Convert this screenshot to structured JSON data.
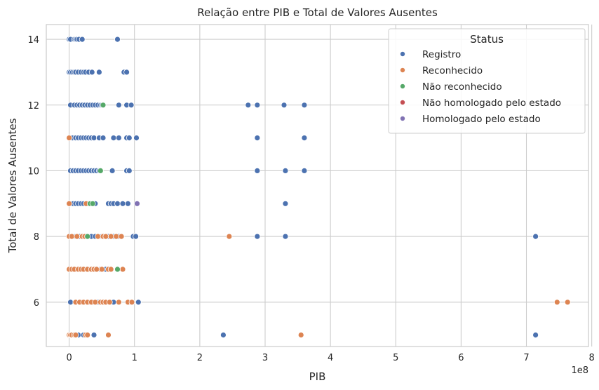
{
  "chart_data": {
    "type": "scatter",
    "title": "Relação entre PIB e Total de Valores Ausentes",
    "xlabel": "PIB",
    "ylabel": "Total de Valores Ausentes",
    "x_offset_label": "1e8",
    "xlim": [
      -0.35,
      7.95
    ],
    "ylim": [
      4.65,
      14.45
    ],
    "x_ticks": [
      0,
      1,
      2,
      3,
      4,
      5,
      6,
      7,
      8
    ],
    "y_ticks": [
      6,
      8,
      10,
      12,
      14
    ],
    "grid": true,
    "legend": {
      "title": "Status",
      "placement": "top-right"
    },
    "series": [
      {
        "name": "Registro",
        "color": "#4c72b0",
        "points": [
          [
            0.0,
            14
          ],
          [
            0.02,
            14
          ],
          [
            0.08,
            14
          ],
          [
            0.1,
            14
          ],
          [
            0.12,
            14
          ],
          [
            0.15,
            14
          ],
          [
            0.2,
            14
          ],
          [
            0.74,
            14
          ],
          [
            0.0,
            13
          ],
          [
            0.02,
            13
          ],
          [
            0.05,
            13
          ],
          [
            0.08,
            13
          ],
          [
            0.1,
            13
          ],
          [
            0.14,
            13
          ],
          [
            0.18,
            13
          ],
          [
            0.22,
            13
          ],
          [
            0.25,
            13
          ],
          [
            0.3,
            13
          ],
          [
            0.35,
            13
          ],
          [
            0.46,
            13
          ],
          [
            0.84,
            13
          ],
          [
            0.88,
            13
          ],
          [
            0.02,
            12
          ],
          [
            0.08,
            12
          ],
          [
            0.12,
            12
          ],
          [
            0.16,
            12
          ],
          [
            0.2,
            12
          ],
          [
            0.24,
            12
          ],
          [
            0.28,
            12
          ],
          [
            0.32,
            12
          ],
          [
            0.36,
            12
          ],
          [
            0.4,
            12
          ],
          [
            0.44,
            12
          ],
          [
            0.48,
            12
          ],
          [
            0.5,
            12
          ],
          [
            0.76,
            12
          ],
          [
            0.88,
            12
          ],
          [
            0.95,
            12
          ],
          [
            2.74,
            12
          ],
          [
            2.88,
            12
          ],
          [
            3.29,
            12
          ],
          [
            3.6,
            12
          ],
          [
            0.05,
            11
          ],
          [
            0.1,
            11
          ],
          [
            0.14,
            11
          ],
          [
            0.18,
            11
          ],
          [
            0.22,
            11
          ],
          [
            0.26,
            11
          ],
          [
            0.3,
            11
          ],
          [
            0.34,
            11
          ],
          [
            0.38,
            11
          ],
          [
            0.46,
            11
          ],
          [
            0.52,
            11
          ],
          [
            0.68,
            11
          ],
          [
            0.76,
            11
          ],
          [
            0.88,
            11
          ],
          [
            0.92,
            11
          ],
          [
            1.03,
            11
          ],
          [
            2.88,
            11
          ],
          [
            3.6,
            11
          ],
          [
            0.02,
            10
          ],
          [
            0.06,
            10
          ],
          [
            0.1,
            10
          ],
          [
            0.14,
            10
          ],
          [
            0.18,
            10
          ],
          [
            0.22,
            10
          ],
          [
            0.26,
            10
          ],
          [
            0.3,
            10
          ],
          [
            0.34,
            10
          ],
          [
            0.38,
            10
          ],
          [
            0.42,
            10
          ],
          [
            0.46,
            10
          ],
          [
            0.66,
            10
          ],
          [
            0.88,
            10
          ],
          [
            0.92,
            10
          ],
          [
            2.88,
            10
          ],
          [
            3.31,
            10
          ],
          [
            3.6,
            10
          ],
          [
            0.02,
            9
          ],
          [
            0.06,
            9
          ],
          [
            0.1,
            9
          ],
          [
            0.14,
            9
          ],
          [
            0.18,
            9
          ],
          [
            0.22,
            9
          ],
          [
            0.26,
            9
          ],
          [
            0.3,
            9
          ],
          [
            0.34,
            9
          ],
          [
            0.4,
            9
          ],
          [
            0.6,
            9
          ],
          [
            0.64,
            9
          ],
          [
            0.68,
            9
          ],
          [
            0.74,
            9
          ],
          [
            0.82,
            9
          ],
          [
            0.9,
            9
          ],
          [
            3.31,
            9
          ],
          [
            0.02,
            8
          ],
          [
            0.06,
            8
          ],
          [
            0.1,
            8
          ],
          [
            0.16,
            8
          ],
          [
            0.22,
            8
          ],
          [
            0.28,
            8
          ],
          [
            0.34,
            8
          ],
          [
            0.4,
            8
          ],
          [
            0.5,
            8
          ],
          [
            0.6,
            8
          ],
          [
            0.68,
            8
          ],
          [
            0.76,
            8
          ],
          [
            0.98,
            8
          ],
          [
            1.02,
            8
          ],
          [
            2.88,
            8
          ],
          [
            3.31,
            8
          ],
          [
            7.14,
            8
          ],
          [
            0.02,
            7
          ],
          [
            0.1,
            7
          ],
          [
            0.18,
            7
          ],
          [
            0.26,
            7
          ],
          [
            0.32,
            7
          ],
          [
            0.4,
            7
          ],
          [
            0.48,
            7
          ],
          [
            0.56,
            7
          ],
          [
            0.62,
            7
          ],
          [
            0.02,
            6
          ],
          [
            0.1,
            6
          ],
          [
            0.2,
            6
          ],
          [
            0.3,
            6
          ],
          [
            0.38,
            6
          ],
          [
            0.45,
            6
          ],
          [
            0.54,
            6
          ],
          [
            0.62,
            6
          ],
          [
            0.68,
            6
          ],
          [
            1.06,
            6
          ],
          [
            0.06,
            5
          ],
          [
            0.14,
            5
          ],
          [
            0.22,
            5
          ],
          [
            0.38,
            5
          ],
          [
            2.36,
            5
          ],
          [
            7.14,
            5
          ]
        ]
      },
      {
        "name": "Reconhecido",
        "color": "#dd8452",
        "points": [
          [
            0.0,
            11
          ],
          [
            0.0,
            9
          ],
          [
            0.26,
            9
          ],
          [
            0.0,
            8
          ],
          [
            0.04,
            8
          ],
          [
            0.12,
            8
          ],
          [
            0.2,
            8
          ],
          [
            0.24,
            8
          ],
          [
            0.44,
            8
          ],
          [
            0.52,
            8
          ],
          [
            0.56,
            8
          ],
          [
            0.64,
            8
          ],
          [
            0.72,
            8
          ],
          [
            0.8,
            8
          ],
          [
            2.45,
            8
          ],
          [
            0.0,
            7
          ],
          [
            0.04,
            7
          ],
          [
            0.08,
            7
          ],
          [
            0.14,
            7
          ],
          [
            0.18,
            7
          ],
          [
            0.22,
            7
          ],
          [
            0.28,
            7
          ],
          [
            0.34,
            7
          ],
          [
            0.38,
            7
          ],
          [
            0.42,
            7
          ],
          [
            0.5,
            7
          ],
          [
            0.6,
            7
          ],
          [
            0.64,
            7
          ],
          [
            0.82,
            7
          ],
          [
            0.1,
            6
          ],
          [
            0.16,
            6
          ],
          [
            0.22,
            6
          ],
          [
            0.28,
            6
          ],
          [
            0.34,
            6
          ],
          [
            0.4,
            6
          ],
          [
            0.48,
            6
          ],
          [
            0.52,
            6
          ],
          [
            0.56,
            6
          ],
          [
            0.62,
            6
          ],
          [
            0.76,
            6
          ],
          [
            0.9,
            6
          ],
          [
            0.96,
            6
          ],
          [
            7.47,
            6
          ],
          [
            7.63,
            6
          ],
          [
            0.0,
            5
          ],
          [
            0.02,
            5
          ],
          [
            0.04,
            5
          ],
          [
            0.08,
            5
          ],
          [
            0.1,
            5
          ],
          [
            0.25,
            5
          ],
          [
            0.28,
            5
          ],
          [
            0.6,
            5
          ],
          [
            3.55,
            5
          ]
        ]
      },
      {
        "name": "Não reconhecido",
        "color": "#55a868",
        "points": [
          [
            0.52,
            12
          ],
          [
            0.48,
            10
          ],
          [
            0.32,
            9
          ],
          [
            0.36,
            9
          ],
          [
            0.28,
            8
          ],
          [
            0.74,
            7
          ]
        ]
      },
      {
        "name": "Não homologado pelo estado",
        "color": "#c44e52",
        "points": []
      },
      {
        "name": "Homologado pelo estado",
        "color": "#8172b3",
        "points": [
          [
            1.04,
            9
          ]
        ]
      }
    ]
  }
}
